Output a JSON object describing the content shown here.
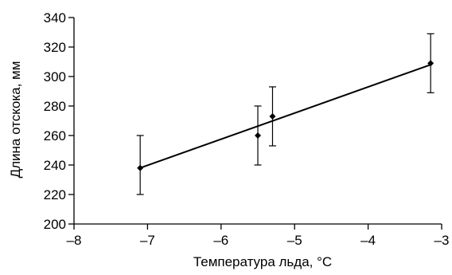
{
  "chart_data": {
    "type": "scatter",
    "title": "",
    "xlabel": "Температура льда, °С",
    "ylabel": "Длина отскока, мм",
    "xlim": [
      -8,
      -3
    ],
    "ylim": [
      200,
      340
    ],
    "x_ticks": [
      -8,
      -7,
      -6,
      -5,
      -4,
      -3
    ],
    "x_tick_labels": [
      "–8",
      "–7",
      "–6",
      "–5",
      "–4",
      "–3"
    ],
    "y_ticks": [
      200,
      220,
      240,
      260,
      280,
      300,
      320,
      340
    ],
    "y_tick_labels": [
      "200",
      "220",
      "240",
      "260",
      "280",
      "300",
      "320",
      "340"
    ],
    "grid": false,
    "series": [
      {
        "points": [
          {
            "x": -7.1,
            "y": 238,
            "err_low": 220,
            "err_high": 260
          },
          {
            "x": -5.5,
            "y": 260,
            "err_low": 240,
            "err_high": 280
          },
          {
            "x": -5.3,
            "y": 273,
            "err_low": 253,
            "err_high": 293
          },
          {
            "x": -3.15,
            "y": 309,
            "err_low": 289,
            "err_high": 329
          }
        ]
      }
    ],
    "trendline": {
      "x": [
        -7.1,
        -3.15
      ],
      "y": [
        238,
        308
      ]
    },
    "colors": {
      "marker": "#000000",
      "line": "#000000",
      "axis": "#000000"
    }
  }
}
